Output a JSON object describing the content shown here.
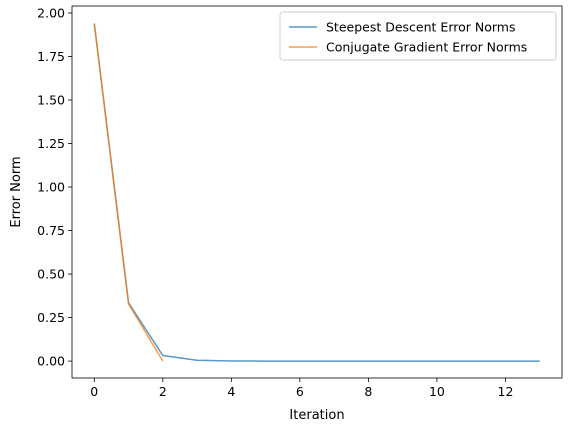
{
  "chart_data": {
    "type": "line",
    "title": "",
    "xlabel": "Iteration",
    "ylabel": "Error Norm",
    "xlim": [
      -0.65,
      13.65
    ],
    "ylim": [
      -0.097,
      2.04
    ],
    "xticks": [
      0,
      2,
      4,
      6,
      8,
      10,
      12
    ],
    "yticks": [
      0.0,
      0.25,
      0.5,
      0.75,
      1.0,
      1.25,
      1.5,
      1.75,
      2.0
    ],
    "ytick_labels": [
      "0.00",
      "0.25",
      "0.50",
      "0.75",
      "1.00",
      "1.25",
      "1.50",
      "1.75",
      "2.00"
    ],
    "grid": false,
    "legend_position": "top-right",
    "series": [
      {
        "name": "Steepest Descent Error Norms",
        "color": "#1f77b4",
        "x": [
          0,
          1,
          2,
          3,
          4,
          5,
          6,
          7,
          8,
          9,
          10,
          11,
          12,
          13
        ],
        "values": [
          1.94,
          0.335,
          0.032,
          0.005,
          0.001,
          0.0,
          0.0,
          0.0,
          0.0,
          0.0,
          0.0,
          0.0,
          0.0,
          0.0
        ]
      },
      {
        "name": "Conjugate Gradient Error Norms",
        "color": "#ff7f0e",
        "x": [
          0,
          1,
          2
        ],
        "values": [
          1.94,
          0.328,
          0.0
        ]
      }
    ]
  }
}
